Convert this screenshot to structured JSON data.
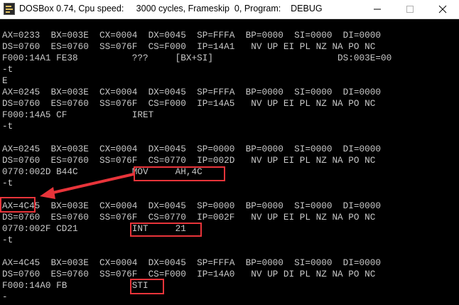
{
  "window": {
    "title": "DOSBox 0.74, Cpu speed:     3000 cycles, Frameskip  0, Program:    DEBUG"
  },
  "console": {
    "lines": [
      "AX=0233  BX=003E  CX=0004  DX=0045  SP=FFFA  BP=0000  SI=0000  DI=0000",
      "DS=0760  ES=0760  SS=076F  CS=F000  IP=14A1   NV UP EI PL NZ NA PO NC",
      "F000:14A1 FE38          ???     [BX+SI]                       DS:003E=00",
      "-t",
      "E",
      "AX=0245  BX=003E  CX=0004  DX=0045  SP=FFFA  BP=0000  SI=0000  DI=0000",
      "DS=0760  ES=0760  SS=076F  CS=F000  IP=14A5   NV UP EI PL NZ NA PO NC",
      "F000:14A5 CF            IRET",
      "-t",
      "",
      "AX=0245  BX=003E  CX=0004  DX=0045  SP=0000  BP=0000  SI=0000  DI=0000",
      "DS=0760  ES=0760  SS=076F  CS=0770  IP=002D   NV UP EI PL NZ NA PO NC",
      "0770:002D B44C          MOV     AH,4C",
      "-t",
      "",
      "AX=4C45  BX=003E  CX=0004  DX=0045  SP=0000  BP=0000  SI=0000  DI=0000",
      "DS=0760  ES=0760  SS=076F  CS=0770  IP=002F   NV UP EI PL NZ NA PO NC",
      "0770:002F CD21          INT     21",
      "-t",
      "",
      "AX=4C45  BX=003E  CX=0004  DX=0045  SP=FFFA  BP=0000  SI=0000  DI=0000",
      "DS=0760  ES=0760  SS=076F  CS=F000  IP=14A0   NV UP DI PL NZ NA PO NC",
      "F000:14A0 FB            STI",
      "-"
    ]
  },
  "colors": {
    "console_text": "#c8c8c8",
    "console_background": "#000000",
    "annotation": "#e8343a"
  },
  "icons": {
    "app": "dosbox-icon",
    "minimize": "minimize-icon",
    "maximize": "maximize-icon",
    "close": "close-icon"
  }
}
